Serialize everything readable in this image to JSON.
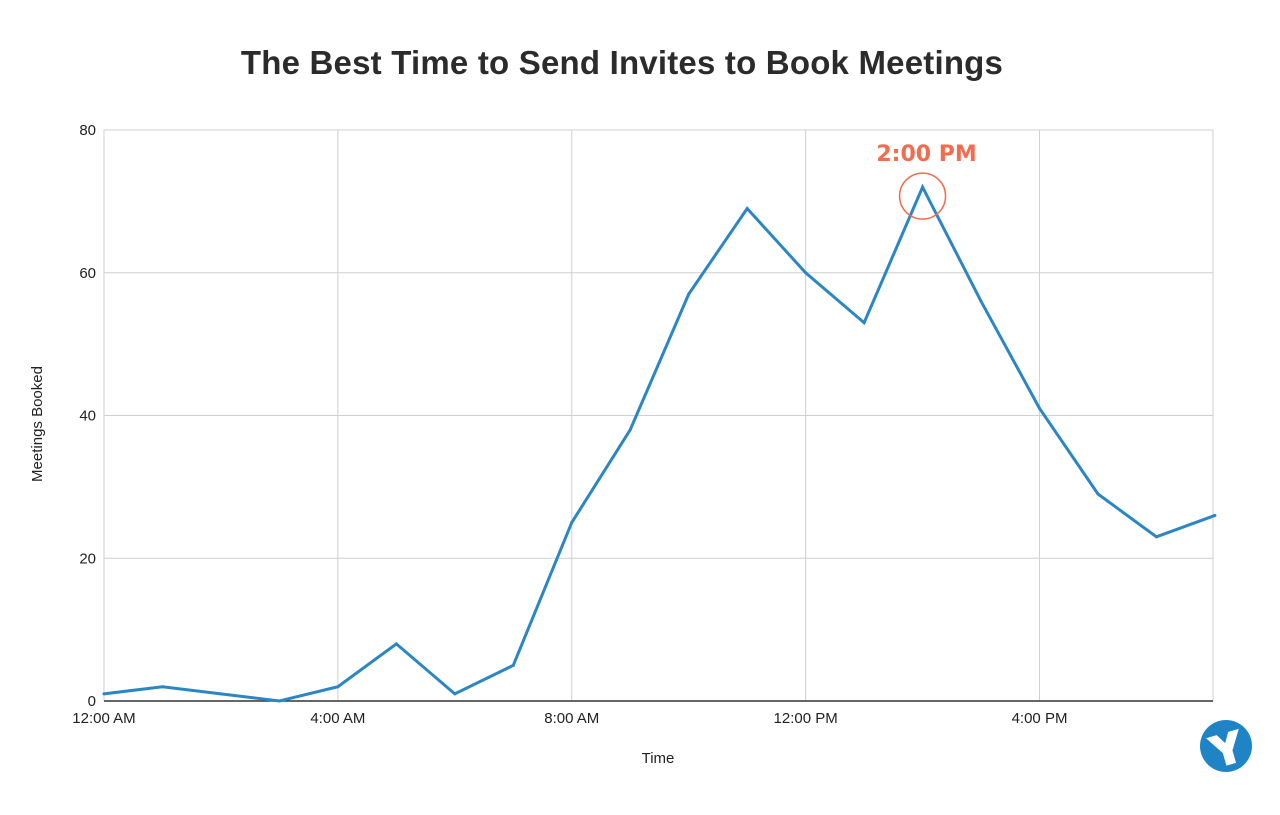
{
  "chart_data": {
    "type": "line",
    "title": "The Best Time to Send Invites to Book Meetings",
    "xlabel": "Time",
    "ylabel": "Meetings Booked",
    "x_hours": [
      0,
      1,
      2,
      3,
      4,
      5,
      6,
      7,
      8,
      9,
      10,
      11,
      12,
      13,
      14,
      15,
      16,
      17,
      18,
      19
    ],
    "series": [
      {
        "values": [
          1,
          2,
          1,
          0,
          2,
          8,
          1,
          5,
          25,
          38,
          57,
          69,
          60,
          53,
          72,
          56,
          41,
          29,
          23,
          26
        ]
      }
    ],
    "xlim": [
      0,
      19
    ],
    "ylim": [
      0,
      80
    ],
    "x_ticks": [
      {
        "hour": 0,
        "label": "12:00 AM"
      },
      {
        "hour": 4,
        "label": "4:00 AM"
      },
      {
        "hour": 8,
        "label": "8:00 AM"
      },
      {
        "hour": 12,
        "label": "12:00 PM"
      },
      {
        "hour": 16,
        "label": "4:00 PM"
      }
    ],
    "y_ticks": [
      {
        "value": 0,
        "label": "0"
      },
      {
        "value": 20,
        "label": "20"
      },
      {
        "value": 40,
        "label": "40"
      },
      {
        "value": 60,
        "label": "60"
      },
      {
        "value": 80,
        "label": "80"
      }
    ],
    "annotation": {
      "label": "2:00 PM",
      "hour": 14,
      "value": 72
    },
    "grid": true,
    "legend": "none"
  },
  "colors": {
    "line": "#2b86c4",
    "grid": "#cfcfcf",
    "axis": "#333333",
    "annotation": "#f26d4f",
    "title": "#2b2b2b",
    "logo": "#1f84c6"
  },
  "logo": {
    "icon": "y-logo-icon"
  }
}
